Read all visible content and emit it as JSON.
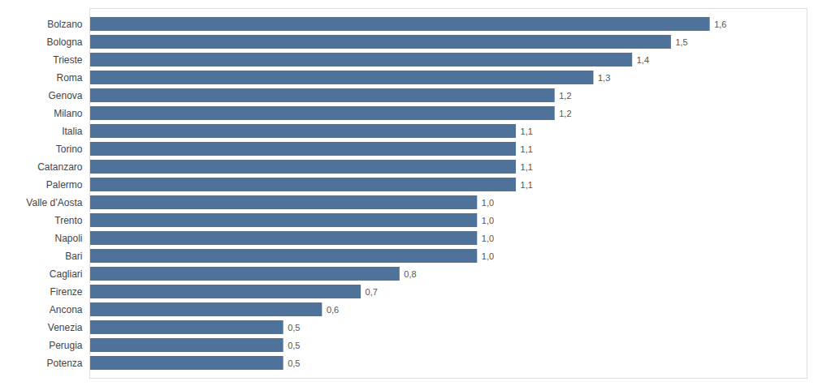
{
  "chart_data": {
    "type": "bar",
    "orientation": "horizontal",
    "categories": [
      "Bolzano",
      "Bologna",
      "Trieste",
      "Roma",
      "Genova",
      "Milano",
      "Italia",
      "Torino",
      "Catanzaro",
      "Palermo",
      "Valle d’Aosta",
      "Trento",
      "Napoli",
      "Bari",
      "Cagliari",
      "Firenze",
      "Ancona",
      "Venezia",
      "Perugia",
      "Potenza"
    ],
    "values": [
      1.6,
      1.5,
      1.4,
      1.3,
      1.2,
      1.2,
      1.1,
      1.1,
      1.1,
      1.1,
      1.0,
      1.0,
      1.0,
      1.0,
      0.8,
      0.7,
      0.6,
      0.5,
      0.5,
      0.5
    ],
    "value_labels": [
      "1,6",
      "1,5",
      "1,4",
      "1,3",
      "1,2",
      "1,2",
      "1,1",
      "1,1",
      "1,1",
      "1,1",
      "1,0",
      "1,0",
      "1,0",
      "1,0",
      "0,8",
      "0,7",
      "0,6",
      "0,5",
      "0,5",
      "0,5"
    ],
    "data_labels": true,
    "color": "#4e729a",
    "xlim": [
      0,
      1.85
    ],
    "tick_labels": "y",
    "grid": false
  }
}
